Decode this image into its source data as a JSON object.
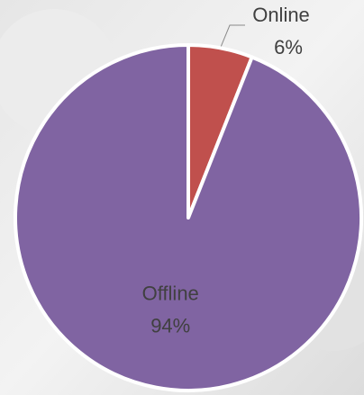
{
  "chart_data": {
    "type": "pie",
    "categories": [
      "Online",
      "Offline"
    ],
    "values": [
      6,
      94
    ],
    "value_labels": [
      "6%",
      "94%"
    ],
    "colors": [
      "#c0504d",
      "#8064a2"
    ]
  }
}
